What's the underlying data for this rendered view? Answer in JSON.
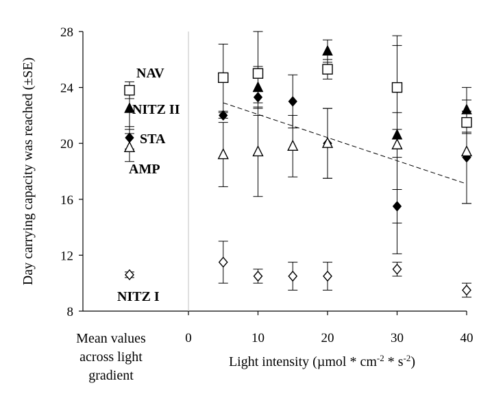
{
  "chart_data": {
    "type": "scatter",
    "title": "",
    "ylabel": "Day carrying capacity was reached (±SE)",
    "xlabel": "Light intensity (µmol * cm-2 * s-2)",
    "xlabel_parts": {
      "main": "Light intensity (µmol * cm",
      "sup1": "-2",
      "mid": " * s",
      "sup2": "-2",
      "end": ")"
    },
    "mean_label": [
      "Mean values",
      "across light",
      "gradient"
    ],
    "ylim": [
      8,
      28
    ],
    "xlim": [
      0,
      40
    ],
    "y_ticks": [
      "8",
      "12",
      "16",
      "20",
      "24",
      "28"
    ],
    "x_ticks": [
      "0",
      "10",
      "20",
      "30",
      "40"
    ],
    "grid": false,
    "legend": "none",
    "series": [
      {
        "name": "NAV",
        "marker": "open-square",
        "points": [
          [
            5,
            24.7,
            2.4
          ],
          [
            10,
            25.0,
            3.0
          ],
          [
            20,
            25.3,
            0.7
          ],
          [
            30,
            24.0,
            3.0
          ],
          [
            40,
            21.5,
            0.8
          ]
        ],
        "mean": [
          23.8,
          0.6
        ]
      },
      {
        "name": "NITZ II",
        "marker": "filled-triangle",
        "points": [
          [
            10,
            24.0,
            1.5
          ],
          [
            20,
            26.6,
            0.8
          ],
          [
            30,
            20.6,
            1.6
          ],
          [
            40,
            22.4,
            1.6
          ]
        ],
        "mean": [
          22.5,
          1.5
        ]
      },
      {
        "name": "STA",
        "marker": "filled-diamond",
        "points": [
          [
            5,
            22.0,
            0.2
          ],
          [
            10,
            23.3,
            0.4
          ],
          [
            15,
            23.0,
            1.9
          ],
          [
            20,
            20.0,
            2.5
          ],
          [
            30,
            15.5,
            1.2
          ],
          [
            40,
            19.0,
            3.3
          ]
        ],
        "mean": [
          20.4,
          0.8
        ]
      },
      {
        "name": "AMP",
        "marker": "open-triangle",
        "points": [
          [
            5,
            19.2,
            2.3
          ],
          [
            10,
            19.4,
            3.2
          ],
          [
            15,
            19.8,
            2.2
          ],
          [
            20,
            20.0,
            2.5
          ],
          [
            30,
            19.9,
            7.8
          ],
          [
            40,
            19.4,
            3.7
          ]
        ],
        "mean": [
          19.7,
          1.0
        ]
      },
      {
        "name": "NITZ I",
        "marker": "open-diamond",
        "points": [
          [
            5,
            11.5,
            1.5
          ],
          [
            10,
            10.5,
            0.5
          ],
          [
            15,
            10.5,
            1.0
          ],
          [
            20,
            10.5,
            1.0
          ],
          [
            30,
            11.0,
            0.5
          ],
          [
            40,
            9.5,
            0.5
          ]
        ],
        "mean": [
          10.6,
          0.2
        ]
      }
    ],
    "trendline": {
      "style": "dashed",
      "from": [
        5,
        22.9
      ],
      "to": [
        40,
        17.1
      ]
    }
  }
}
